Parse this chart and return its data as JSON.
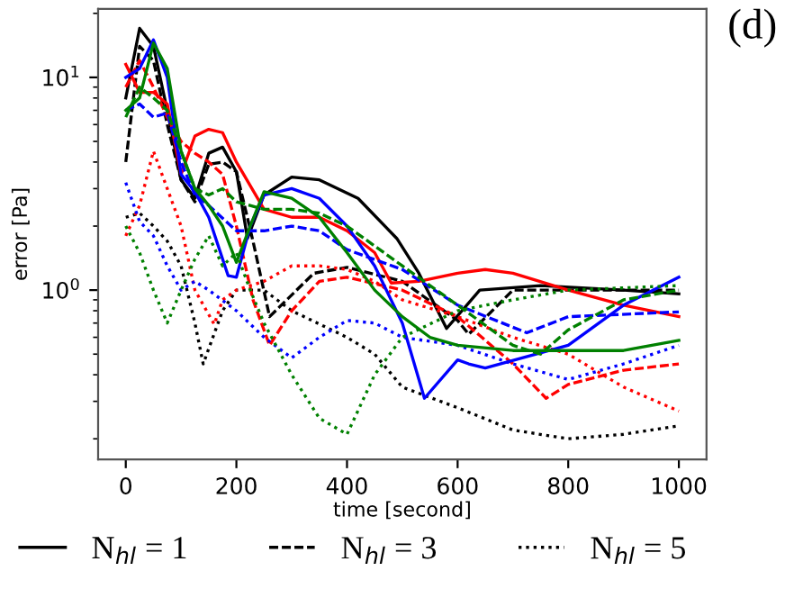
{
  "chart_data": {
    "type": "line",
    "xlabel": "time [second]",
    "ylabel": "error [Pa]",
    "annotations": [
      "(d)"
    ],
    "log": "y",
    "xlim": [
      -50,
      1050
    ],
    "xticks": [
      0,
      200,
      400,
      600,
      800,
      1000
    ],
    "ylim": [
      0.16,
      21
    ],
    "yticks": [
      {
        "value": 1,
        "label": "10$^{0}$"
      },
      {
        "value": 10,
        "label": "10$^{1}$"
      }
    ],
    "grid": false,
    "legend": "bottom",
    "marker": "none",
    "series": [
      {
        "name": "N$_{hl}$ = 1",
        "color": "#000000",
        "line_style": "solid",
        "x": [
          0,
          25,
          50,
          75,
          100,
          125,
          150,
          175,
          200,
          220,
          250,
          300,
          350,
          420,
          490,
          530,
          580,
          640,
          750,
          900,
          1000
        ],
        "values": [
          8,
          17,
          14,
          7,
          3.3,
          2.7,
          4.4,
          4.7,
          3.6,
          1.75,
          2.8,
          3.4,
          3.3,
          2.7,
          1.75,
          1.2,
          0.66,
          1.0,
          1.05,
          1.0,
          0.96
        ]
      },
      {
        "name": "N$_{hl}$ = 3",
        "color": "#000000",
        "line_style": "dashed",
        "x": [
          0,
          25,
          50,
          75,
          100,
          125,
          150,
          175,
          200,
          230,
          260,
          340,
          400,
          500,
          600,
          620,
          700,
          800,
          900,
          1000
        ],
        "values": [
          4,
          14,
          12,
          6,
          3.3,
          2.6,
          3.9,
          4.0,
          3.6,
          1.7,
          0.75,
          1.2,
          1.28,
          1.1,
          0.72,
          0.62,
          1.0,
          1.0,
          1.0,
          1.0
        ]
      },
      {
        "name": "N$_{hl}$ = 5",
        "color": "#000000",
        "line_style": "dotted",
        "x": [
          0,
          25,
          50,
          75,
          100,
          125,
          140,
          175,
          200,
          250,
          300,
          400,
          450,
          500,
          600,
          700,
          800,
          900,
          1000
        ],
        "values": [
          2.2,
          2.3,
          2.0,
          1.7,
          1.3,
          0.7,
          0.45,
          0.8,
          1.0,
          1.0,
          0.8,
          0.6,
          0.5,
          0.35,
          0.28,
          0.22,
          0.2,
          0.21,
          0.23
        ]
      },
      {
        "color": "#ff0000",
        "line_style": "solid",
        "x": [
          0,
          25,
          50,
          75,
          100,
          125,
          150,
          175,
          200,
          250,
          300,
          350,
          400,
          450,
          480,
          530,
          600,
          650,
          700,
          800,
          900,
          1000
        ],
        "values": [
          11.5,
          8.5,
          8.5,
          7.5,
          3.5,
          5.3,
          5.7,
          5.5,
          4.0,
          2.4,
          2.2,
          2.2,
          1.9,
          1.5,
          1.08,
          1.1,
          1.2,
          1.25,
          1.2,
          1.0,
          0.85,
          0.75
        ]
      },
      {
        "color": "#ff0000",
        "line_style": "dashed",
        "x": [
          0,
          25,
          50,
          75,
          100,
          125,
          150,
          175,
          200,
          230,
          260,
          300,
          350,
          400,
          500,
          600,
          700,
          760,
          800,
          900,
          1000
        ],
        "values": [
          9,
          12,
          9,
          6.5,
          5,
          4.4,
          4.0,
          3.5,
          2.0,
          0.9,
          0.55,
          0.8,
          1.1,
          1.15,
          1.0,
          0.75,
          0.45,
          0.31,
          0.36,
          0.42,
          0.45
        ]
      },
      {
        "color": "#ff0000",
        "line_style": "dotted",
        "x": [
          0,
          25,
          50,
          75,
          100,
          125,
          160,
          175,
          200,
          250,
          300,
          350,
          400,
          450,
          500,
          600,
          700,
          800,
          900,
          1000
        ],
        "values": [
          1.8,
          2.5,
          4.5,
          3,
          2.0,
          1.0,
          0.69,
          0.9,
          1.0,
          1.1,
          1.3,
          1.3,
          1.25,
          1.1,
          0.9,
          0.75,
          0.6,
          0.5,
          0.35,
          0.27
        ]
      },
      {
        "color": "#0000ff",
        "line_style": "solid",
        "x": [
          0,
          25,
          50,
          75,
          100,
          125,
          150,
          185,
          200,
          225,
          250,
          300,
          350,
          400,
          450,
          500,
          540,
          600,
          620,
          650,
          800,
          900,
          1000
        ],
        "values": [
          10,
          11,
          15,
          10,
          3.5,
          2.9,
          2.2,
          1.17,
          1.15,
          2.0,
          2.8,
          3.0,
          2.7,
          2.0,
          1.3,
          0.7,
          0.31,
          0.47,
          0.45,
          0.43,
          0.55,
          0.85,
          1.15
        ]
      },
      {
        "color": "#0000ff",
        "line_style": "dashed",
        "x": [
          0,
          25,
          50,
          75,
          100,
          125,
          150,
          200,
          250,
          300,
          350,
          400,
          500,
          600,
          725,
          800,
          1000
        ],
        "values": [
          7,
          7.5,
          6.5,
          6.8,
          4.0,
          2.8,
          2.5,
          1.9,
          1.9,
          2.0,
          1.9,
          1.55,
          1.25,
          0.85,
          0.63,
          0.75,
          0.79
        ]
      },
      {
        "color": "#0000ff",
        "line_style": "dotted",
        "x": [
          0,
          25,
          50,
          75,
          100,
          125,
          150,
          200,
          250,
          300,
          350,
          400,
          450,
          500,
          600,
          700,
          800,
          900,
          1000
        ],
        "values": [
          3.2,
          2.1,
          1.8,
          1.3,
          1.0,
          1.1,
          1.0,
          0.8,
          0.6,
          0.48,
          0.6,
          0.72,
          0.7,
          0.6,
          0.55,
          0.45,
          0.38,
          0.45,
          0.55
        ]
      },
      {
        "color": "#008000",
        "line_style": "solid",
        "x": [
          0,
          25,
          50,
          75,
          100,
          125,
          150,
          175,
          200,
          225,
          250,
          300,
          350,
          400,
          450,
          500,
          550,
          600,
          700,
          800,
          900,
          1000
        ],
        "values": [
          7,
          8,
          14.5,
          11,
          4.5,
          3.0,
          2.5,
          2.0,
          1.35,
          2.0,
          2.9,
          2.7,
          2.2,
          1.5,
          1.0,
          0.75,
          0.6,
          0.55,
          0.52,
          0.52,
          0.52,
          0.58
        ]
      },
      {
        "color": "#008000",
        "line_style": "dashed",
        "x": [
          0,
          25,
          50,
          75,
          100,
          125,
          150,
          175,
          200,
          250,
          300,
          350,
          400,
          500,
          600,
          700,
          750,
          800,
          900,
          1000
        ],
        "values": [
          6.5,
          9,
          8,
          7,
          4.5,
          3.0,
          2.8,
          3.0,
          2.6,
          2.4,
          2.4,
          2.3,
          2.0,
          1.3,
          0.85,
          0.55,
          0.5,
          0.65,
          0.9,
          1.0
        ]
      },
      {
        "color": "#008000",
        "line_style": "dotted",
        "x": [
          0,
          25,
          50,
          75,
          100,
          125,
          150,
          175,
          200,
          225,
          250,
          300,
          350,
          400,
          450,
          500,
          600,
          700,
          800,
          1000
        ],
        "values": [
          2.0,
          1.5,
          1.0,
          0.7,
          1.0,
          1.4,
          1.8,
          1.3,
          1.5,
          1.0,
          0.7,
          0.4,
          0.25,
          0.21,
          0.4,
          0.6,
          0.8,
          0.9,
          1.0,
          1.05
        ]
      }
    ]
  }
}
